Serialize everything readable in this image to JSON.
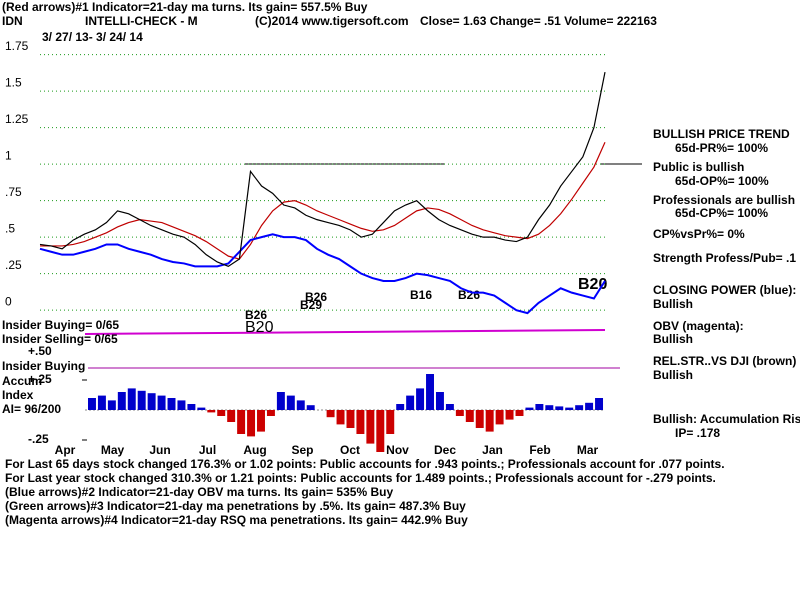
{
  "header": {
    "line1": "(Red arrows)#1 Indicator=21-day ma turns. Its gain= 557.5% Buy",
    "symbol": "IDN",
    "name": "INTELLI-CHECK - M",
    "copyright": "(C)2014 www.tigersoft.com",
    "quote": "Close=  1.63  Change= .51 Volume= 222163",
    "range": "3/ 27/ 13-  3/ 24/ 14"
  },
  "left_labels": {
    "insider_buying": "Insider Buying= 0/65",
    "insider_selling": "Insider Selling= 0/65",
    "plus50": "+.50",
    "insider_buying_line": "Insider Buying",
    "accum": "Accum",
    "index": "Index",
    "ai": "AI= 96/200"
  },
  "right_panel": [
    "BULLISH PRICE TREND",
    "65d-PR%= 100%",
    "Public is bullish",
    "65d-OP%= 100%",
    "Professionals are bullish",
    "65d-CP%= 100%",
    "CP%vsPr%=  0%",
    "Strength Profess/Pub= .1",
    "CLOSING POWER (blue):",
    "Bullish",
    "OBV (magenta):",
    "Bullish",
    "REL.STR..VS DJI (brown)",
    "Bullish",
    "Bullish: Accumulation Risi",
    "IP=  .178"
  ],
  "annotations": [
    "B26",
    "B26",
    "B29",
    "B16",
    "B26",
    "B20",
    "B20"
  ],
  "footer": [
    "For Last 65 days stock changed  176.3% or  1.02 points:  Public accounts for  .943 points.;  Professionals account for  .077 points.",
    "For Last year stock changed  310.3% or  1.21 points:  Public accounts for  1.489 points.;  Professionals account for -.279 points.",
    "(Blue arrows)#2 Indicator=21-day OBV ma turns. Its gain= 535% Buy",
    "(Green arrows)#3 Indicator=21-day ma penetrations by .5%. Its gain= 487.3% Buy",
    "(Magenta arrows)#4 Indicator=21-day RSQ ma penetrations. Its gain= 442.9% Buy"
  ],
  "chart_data": {
    "type": "line",
    "categories": [
      "Apr",
      "May",
      "Jun",
      "Jul",
      "Aug",
      "Sep",
      "Oct",
      "Nov",
      "Dec",
      "Jan",
      "Feb",
      "Mar"
    ],
    "ylim": [
      -0.17,
      1.85
    ],
    "yticks": [
      {
        "value": 1.75,
        "label": "1.75"
      },
      1.5,
      {
        "value": 1.25,
        "label": "1.25"
      },
      1,
      {
        "value": 0.75,
        "label": ".75"
      },
      {
        "value": 0.5,
        "label": ".5"
      },
      {
        "value": 0.25,
        "label": ".25"
      },
      0
    ],
    "grid": true,
    "price": {
      "color": "#000000",
      "values": [
        0.45,
        0.44,
        0.42,
        0.48,
        0.52,
        0.55,
        0.6,
        0.68,
        0.66,
        0.62,
        0.58,
        0.55,
        0.52,
        0.5,
        0.45,
        0.38,
        0.33,
        0.3,
        0.35,
        0.95,
        0.85,
        0.8,
        0.72,
        0.7,
        0.65,
        0.62,
        0.6,
        0.58,
        0.55,
        0.5,
        0.52,
        0.6,
        0.68,
        0.72,
        0.75,
        0.68,
        0.62,
        0.58,
        0.55,
        0.52,
        0.5,
        0.5,
        0.48,
        0.47,
        0.5,
        0.62,
        0.72,
        0.85,
        0.95,
        1.05,
        1.25,
        1.63
      ]
    },
    "ma": {
      "color": "#c00000",
      "values": [
        0.44,
        0.44,
        0.44,
        0.45,
        0.47,
        0.5,
        0.53,
        0.57,
        0.6,
        0.62,
        0.61,
        0.6,
        0.57,
        0.54,
        0.51,
        0.47,
        0.42,
        0.37,
        0.35,
        0.45,
        0.58,
        0.68,
        0.74,
        0.75,
        0.72,
        0.68,
        0.65,
        0.62,
        0.59,
        0.56,
        0.54,
        0.55,
        0.58,
        0.63,
        0.68,
        0.7,
        0.69,
        0.66,
        0.62,
        0.58,
        0.55,
        0.53,
        0.51,
        0.5,
        0.49,
        0.52,
        0.58,
        0.66,
        0.76,
        0.87,
        0.98,
        1.15
      ]
    },
    "closing_power": {
      "color": "#0000ff",
      "values": [
        0.42,
        0.4,
        0.38,
        0.38,
        0.4,
        0.42,
        0.45,
        0.45,
        0.42,
        0.4,
        0.38,
        0.35,
        0.33,
        0.32,
        0.3,
        0.3,
        0.3,
        0.32,
        0.4,
        0.48,
        0.5,
        0.52,
        0.5,
        0.5,
        0.48,
        0.42,
        0.38,
        0.35,
        0.3,
        0.25,
        0.22,
        0.2,
        0.2,
        0.22,
        0.25,
        0.24,
        0.22,
        0.2,
        0.15,
        0.12,
        0.12,
        0.1,
        0.05,
        0.0,
        -0.02,
        0.05,
        0.1,
        0.15,
        0.12,
        0.1,
        0.08,
        0.2
      ]
    },
    "accum": {
      "ylim": [
        -0.4,
        0.4
      ],
      "yticks": [
        {
          "value": 0.25,
          "label": "+.25"
        },
        {
          "value": -0.25,
          "label": "-.25"
        }
      ],
      "pos_color": "#0000cc",
      "neg_color": "#cc0000",
      "values": [
        0.1,
        0.12,
        0.08,
        0.15,
        0.18,
        0.16,
        0.14,
        0.12,
        0.1,
        0.08,
        0.05,
        0.02,
        -0.02,
        -0.05,
        -0.1,
        -0.2,
        -0.22,
        -0.18,
        -0.05,
        0.15,
        0.12,
        0.08,
        0.04,
        0.0,
        -0.06,
        -0.12,
        -0.15,
        -0.2,
        -0.28,
        -0.35,
        -0.2,
        0.05,
        0.12,
        0.18,
        0.3,
        0.15,
        0.05,
        -0.05,
        -0.1,
        -0.15,
        -0.18,
        -0.12,
        -0.08,
        -0.05,
        0.02,
        0.05,
        0.04,
        0.03,
        0.02,
        0.04,
        0.06,
        0.1
      ]
    }
  }
}
